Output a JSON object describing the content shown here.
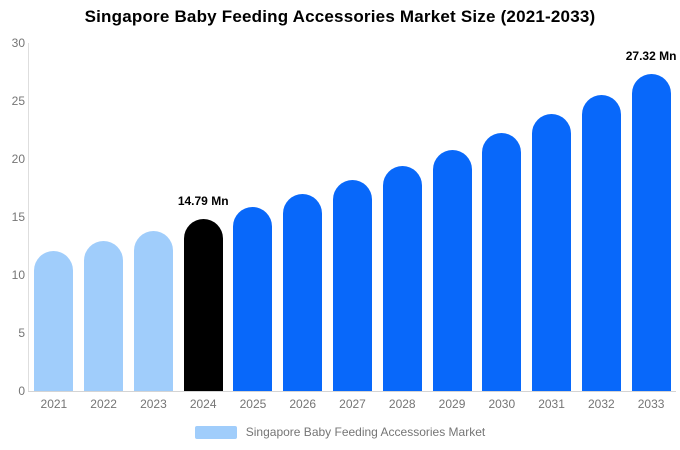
{
  "title": "Singapore Baby Feeding Accessories Market Size (2021-2033)",
  "legend": {
    "label": "Singapore Baby Feeding Accessories Market"
  },
  "colors": {
    "historical_bar": "#A0CDFB",
    "current_year_bar": "#000000",
    "forecast_bar": "#0868FA",
    "axis_line": "#DEDEDE",
    "baseline": "#D4D4D4",
    "tick_label": "#757575",
    "annotation_text": "#000000",
    "title_text": "#000000",
    "background": "#FFFFFF"
  },
  "chart_data": {
    "type": "bar",
    "title": "Singapore Baby Feeding Accessories Market Size (2021-2033)",
    "unit": "Mn",
    "categories": [
      "2021",
      "2022",
      "2023",
      "2024",
      "2025",
      "2026",
      "2027",
      "2028",
      "2029",
      "2030",
      "2031",
      "2032",
      "2033"
    ],
    "values": [
      12.05,
      12.9,
      13.81,
      14.79,
      15.83,
      16.95,
      18.15,
      19.43,
      20.8,
      22.27,
      23.84,
      25.52,
      27.32
    ],
    "bar_roles": [
      "historical",
      "historical",
      "historical",
      "current",
      "forecast",
      "forecast",
      "forecast",
      "forecast",
      "forecast",
      "forecast",
      "forecast",
      "forecast",
      "forecast"
    ],
    "data_labels": {
      "2024": "14.79 Mn",
      "2033": "27.32 Mn"
    },
    "ylim": [
      0,
      30
    ],
    "yticks": [
      0,
      5,
      10,
      15,
      20,
      25,
      30
    ],
    "xlabel": "",
    "ylabel": "",
    "grid": false,
    "legend_position": "bottom",
    "legend_entries": [
      "Singapore Baby Feeding Accessories Market"
    ]
  }
}
